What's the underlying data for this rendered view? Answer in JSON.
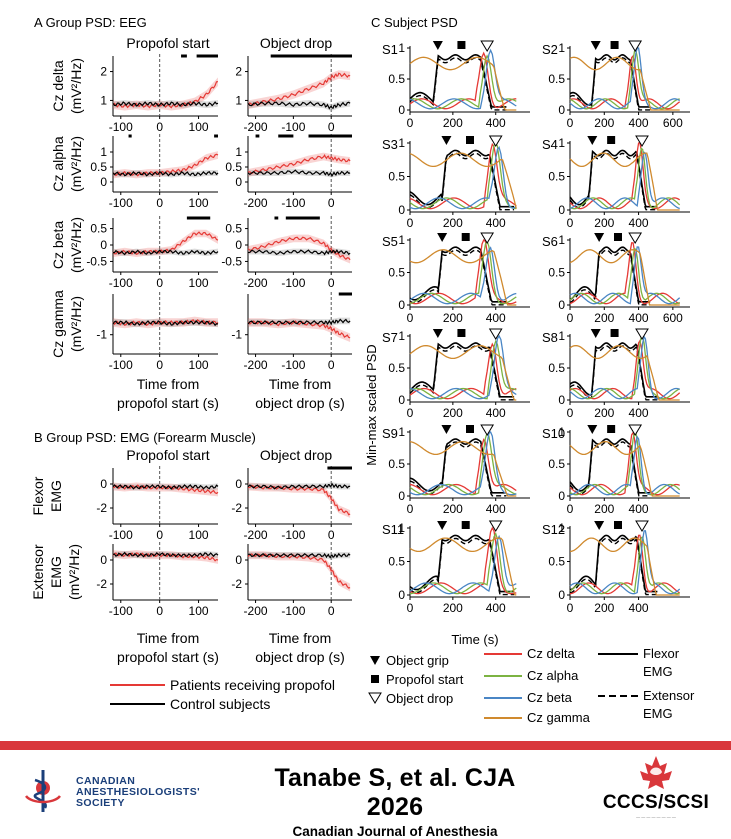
{
  "panelA": {
    "title": "A Group PSD: EEG",
    "col_titles": [
      "Propofol start",
      "Object drop"
    ],
    "row_labels": [
      [
        "Cz delta",
        "(mV²/Hz)"
      ],
      [
        "Cz alpha",
        "(mV²/Hz)"
      ],
      [
        "Cz beta",
        "(mV²/Hz)"
      ],
      [
        "Cz gamma",
        "(mV²/Hz)"
      ]
    ],
    "xlabels": [
      [
        "Time from",
        "propofol start (s)"
      ],
      [
        "Time from",
        "object drop (s)"
      ]
    ]
  },
  "panelB": {
    "title": "B Group PSD: EMG (Forearm Muscle)",
    "col_titles": [
      "Propofol start",
      "Object drop"
    ],
    "row_labels": [
      [
        "Flexor",
        "EMG"
      ],
      [
        "Extensor",
        "EMG",
        "(mV²/Hz)"
      ]
    ],
    "xlabels": [
      [
        "Time from",
        "propofol start (s)"
      ],
      [
        "Time from",
        "object drop (s)"
      ]
    ]
  },
  "panelC": {
    "title": "C Subject PSD",
    "ylabel": "Min-max scaled PSD",
    "xlabel": "Time (s)",
    "subjects": [
      "S1",
      "S2",
      "S3",
      "S4",
      "S5",
      "S6",
      "S7",
      "S8",
      "S9",
      "S10",
      "S11",
      "S12"
    ]
  },
  "legend": {
    "markers": [
      "Object grip",
      "Propofol start",
      "Object drop"
    ],
    "eeg": [
      "Cz delta",
      "Cz alpha",
      "Cz beta",
      "Cz gamma"
    ],
    "emg": [
      [
        "Flexor",
        "EMG"
      ],
      [
        "Extensor",
        "EMG"
      ]
    ],
    "groups": [
      "Patients receiving propofol",
      "Control subjects"
    ]
  },
  "colors": {
    "propofol": "#e53935",
    "control": "#000000",
    "delta": "#e53935",
    "alpha": "#7cb342",
    "beta": "#4a86c5",
    "gamma": "#d08a2e",
    "footer_bar": "#d9373b"
  },
  "chart_data": [
    {
      "type": "line",
      "title": "Propofol start",
      "ylabel": "Cz delta (mV²/Hz)",
      "xlabel": "Time from propofol start (s)",
      "ylim": [
        0.6,
        2.4
      ],
      "x": [
        -120,
        -90,
        -60,
        -30,
        0,
        30,
        60,
        90,
        120,
        150
      ],
      "series": [
        {
          "name": "Patients receiving propofol",
          "values": [
            0.85,
            0.8,
            0.85,
            0.8,
            0.85,
            0.8,
            0.85,
            0.95,
            1.2,
            1.65
          ]
        },
        {
          "name": "Control subjects",
          "values": [
            0.85,
            0.9,
            0.85,
            0.9,
            0.85,
            0.9,
            0.85,
            0.9,
            0.85,
            0.9
          ]
        }
      ]
    },
    {
      "type": "line",
      "title": "Object drop",
      "ylabel": "Cz delta (mV²/Hz)",
      "xlabel": "Time from object drop (s)",
      "ylim": [
        0.6,
        2.4
      ],
      "x": [
        -220,
        -180,
        -140,
        -100,
        -60,
        -20,
        0,
        20,
        50
      ],
      "series": [
        {
          "name": "Patients receiving propofol",
          "values": [
            0.85,
            0.95,
            1.05,
            1.2,
            1.4,
            1.6,
            1.8,
            1.9,
            1.85
          ]
        },
        {
          "name": "Control subjects",
          "values": [
            0.85,
            0.9,
            0.9,
            0.85,
            0.9,
            0.85,
            0.75,
            0.85,
            0.9
          ]
        }
      ]
    },
    {
      "type": "line",
      "title": "Propofol start",
      "ylabel": "Cz alpha (mV²/Hz)",
      "xlabel": "Time from propofol start (s)",
      "ylim": [
        -0.2,
        1.4
      ],
      "x": [
        -120,
        -90,
        -60,
        -30,
        0,
        30,
        60,
        90,
        120,
        150
      ],
      "series": [
        {
          "name": "Patients receiving propofol",
          "values": [
            0.25,
            0.3,
            0.25,
            0.3,
            0.3,
            0.35,
            0.4,
            0.55,
            0.8,
            0.9
          ]
        },
        {
          "name": "Control subjects",
          "values": [
            0.3,
            0.25,
            0.3,
            0.25,
            0.3,
            0.25,
            0.3,
            0.25,
            0.3,
            0.3
          ]
        }
      ]
    },
    {
      "type": "line",
      "title": "Object drop",
      "ylabel": "Cz alpha (mV²/Hz)",
      "xlabel": "Time from object drop (s)",
      "ylim": [
        -0.2,
        1.4
      ],
      "x": [
        -220,
        -180,
        -140,
        -100,
        -60,
        -20,
        0,
        20,
        50
      ],
      "series": [
        {
          "name": "Patients receiving propofol",
          "values": [
            0.3,
            0.4,
            0.5,
            0.6,
            0.75,
            0.85,
            0.8,
            0.75,
            0.7
          ]
        },
        {
          "name": "Control subjects",
          "values": [
            0.3,
            0.3,
            0.3,
            0.35,
            0.3,
            0.3,
            0.25,
            0.3,
            0.3
          ]
        }
      ]
    },
    {
      "type": "line",
      "title": "Propofol start",
      "ylabel": "Cz beta (mV²/Hz)",
      "xlabel": "Time from propofol start (s)",
      "ylim": [
        -0.7,
        0.7
      ],
      "x": [
        -120,
        -90,
        -60,
        -30,
        0,
        30,
        60,
        90,
        120,
        150
      ],
      "series": [
        {
          "name": "Patients receiving propofol",
          "values": [
            -0.25,
            -0.2,
            -0.25,
            -0.2,
            -0.2,
            -0.15,
            0.1,
            0.35,
            0.35,
            0.15
          ]
        },
        {
          "name": "Control subjects",
          "values": [
            -0.2,
            -0.25,
            -0.2,
            -0.25,
            -0.2,
            -0.2,
            -0.25,
            -0.2,
            -0.25,
            -0.2
          ]
        }
      ]
    },
    {
      "type": "line",
      "title": "Object drop",
      "ylabel": "Cz beta (mV²/Hz)",
      "xlabel": "Time from object drop (s)",
      "ylim": [
        -0.7,
        0.7
      ],
      "x": [
        -220,
        -180,
        -140,
        -100,
        -60,
        -20,
        0,
        20,
        50
      ],
      "series": [
        {
          "name": "Patients receiving propofol",
          "values": [
            -0.15,
            -0.05,
            0.1,
            0.2,
            0.2,
            0.05,
            -0.15,
            -0.3,
            -0.45
          ]
        },
        {
          "name": "Control subjects",
          "values": [
            -0.2,
            -0.2,
            -0.25,
            -0.2,
            -0.2,
            -0.25,
            -0.2,
            -0.2,
            -0.25
          ]
        }
      ]
    },
    {
      "type": "line",
      "title": "Propofol start",
      "ylabel": "Cz gamma (mV²/Hz)",
      "xlabel": "Time from propofol start (s)",
      "ylim": [
        -1.5,
        0.2
      ],
      "x": [
        -120,
        -90,
        -60,
        -30,
        0,
        30,
        60,
        90,
        120,
        150
      ],
      "series": [
        {
          "name": "Patients receiving propofol",
          "values": [
            -0.6,
            -0.65,
            -0.6,
            -0.65,
            -0.6,
            -0.6,
            -0.6,
            -0.55,
            -0.6,
            -0.6
          ]
        },
        {
          "name": "Control subjects",
          "values": [
            -0.6,
            -0.6,
            -0.65,
            -0.6,
            -0.6,
            -0.65,
            -0.6,
            -0.6,
            -0.6,
            -0.65
          ]
        }
      ]
    },
    {
      "type": "line",
      "title": "Object drop",
      "ylabel": "Cz gamma (mV²/Hz)",
      "xlabel": "Time from object drop (s)",
      "ylim": [
        -1.5,
        0.2
      ],
      "x": [
        -220,
        -180,
        -140,
        -100,
        -60,
        -20,
        0,
        20,
        50
      ],
      "series": [
        {
          "name": "Patients receiving propofol",
          "values": [
            -0.6,
            -0.6,
            -0.65,
            -0.6,
            -0.65,
            -0.7,
            -0.8,
            -0.95,
            -1.1
          ]
        },
        {
          "name": "Control subjects",
          "values": [
            -0.6,
            -0.6,
            -0.6,
            -0.6,
            -0.6,
            -0.6,
            -0.6,
            -0.55,
            -0.55
          ]
        }
      ]
    },
    {
      "type": "line",
      "title": "Propofol start",
      "ylabel": "Flexor EMG",
      "xlabel": "Time from propofol start (s)",
      "ylim": [
        -3,
        1
      ],
      "x": [
        -120,
        -90,
        -60,
        -30,
        0,
        30,
        60,
        90,
        120,
        150
      ],
      "series": [
        {
          "name": "Patients receiving propofol",
          "values": [
            -0.2,
            -0.3,
            -0.2,
            -0.3,
            -0.3,
            -0.3,
            -0.4,
            -0.5,
            -0.6,
            -0.7
          ]
        },
        {
          "name": "Control subjects",
          "values": [
            -0.2,
            -0.2,
            -0.3,
            -0.2,
            -0.2,
            -0.3,
            -0.2,
            -0.2,
            -0.3,
            -0.2
          ]
        }
      ]
    },
    {
      "type": "line",
      "title": "Object drop",
      "ylabel": "Flexor EMG",
      "xlabel": "Time from object drop (s)",
      "ylim": [
        -3,
        1
      ],
      "x": [
        -220,
        -180,
        -140,
        -100,
        -60,
        -20,
        0,
        20,
        50
      ],
      "series": [
        {
          "name": "Patients receiving propofol",
          "values": [
            -0.2,
            -0.3,
            -0.3,
            -0.4,
            -0.4,
            -0.5,
            -1.2,
            -2.1,
            -2.5
          ]
        },
        {
          "name": "Control subjects",
          "values": [
            -0.2,
            -0.2,
            -0.3,
            -0.2,
            -0.2,
            -0.2,
            -0.1,
            -0.2,
            -0.2
          ]
        }
      ]
    },
    {
      "type": "line",
      "title": "Propofol start",
      "ylabel": "Extensor EMG (mV²/Hz)",
      "xlabel": "Time from propofol start (s)",
      "ylim": [
        -3,
        1
      ],
      "x": [
        -120,
        -90,
        -60,
        -30,
        0,
        30,
        60,
        90,
        120,
        150
      ],
      "series": [
        {
          "name": "Patients receiving propofol",
          "values": [
            0.5,
            0.4,
            0.5,
            0.4,
            0.4,
            0.4,
            0.3,
            0.3,
            0.2,
            0.0
          ]
        },
        {
          "name": "Control subjects",
          "values": [
            0.4,
            0.5,
            0.4,
            0.4,
            0.5,
            0.4,
            0.4,
            0.4,
            0.5,
            0.4
          ]
        }
      ]
    },
    {
      "type": "line",
      "title": "Object drop",
      "ylabel": "Extensor EMG (mV²/Hz)",
      "xlabel": "Time from object drop (s)",
      "ylim": [
        -3,
        1
      ],
      "x": [
        -220,
        -180,
        -140,
        -100,
        -60,
        -20,
        0,
        20,
        50
      ],
      "series": [
        {
          "name": "Patients receiving propofol",
          "values": [
            0.4,
            0.4,
            0.3,
            0.3,
            0.2,
            0.0,
            -0.8,
            -1.8,
            -2.3
          ]
        },
        {
          "name": "Control subjects",
          "values": [
            0.4,
            0.4,
            0.4,
            0.4,
            0.4,
            0.4,
            0.3,
            0.4,
            0.4
          ]
        }
      ]
    }
  ],
  "footer": {
    "cas_lines": [
      "CANADIAN",
      "ANESTHESIOLOGISTS'",
      "SOCIETY"
    ],
    "citation": "Tanabe S, et al. CJA 2026",
    "journal": "Canadian Journal of Anesthesia",
    "ccs_logo": "CCCS/SCSI"
  }
}
